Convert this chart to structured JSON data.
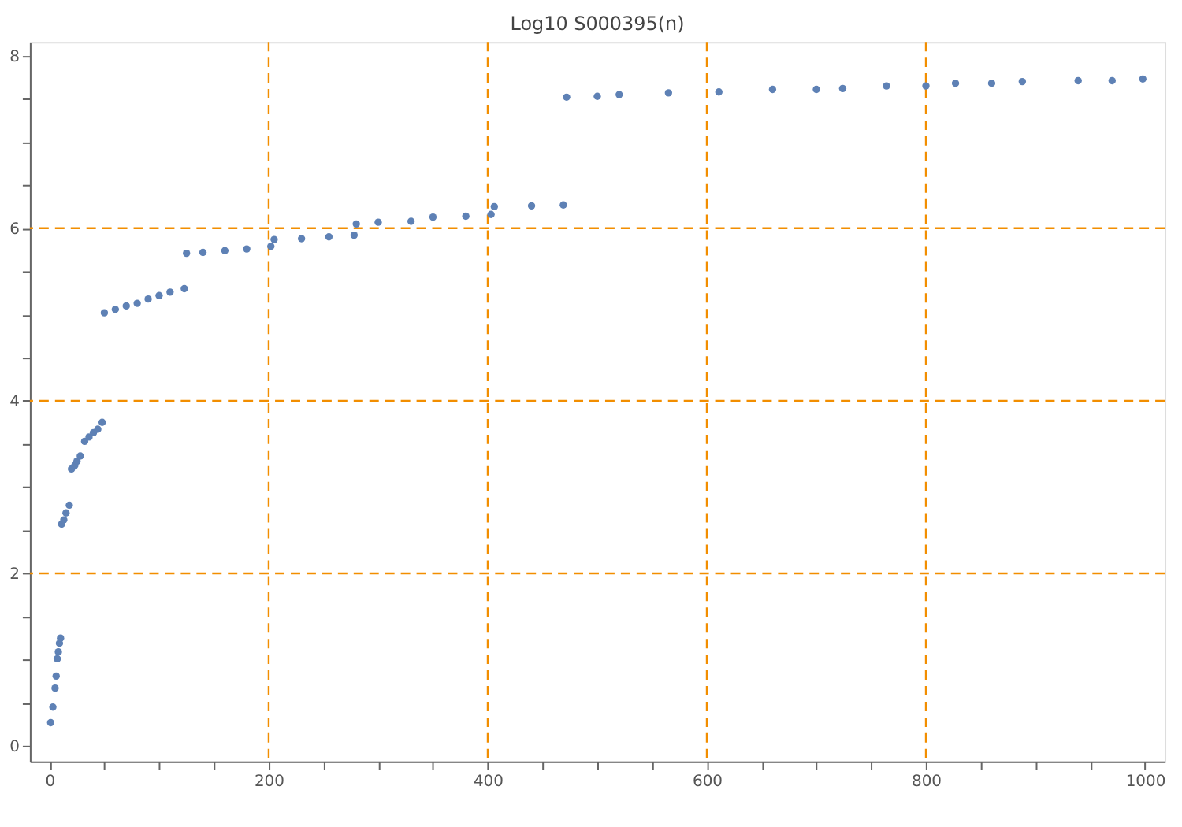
{
  "chart_data": {
    "type": "scatter",
    "title": "Log10 S000395(n)",
    "marker": "circle",
    "xlim": [
      -18,
      1018
    ],
    "ylim": [
      -0.18,
      8.16
    ],
    "xticks": [
      0,
      {
        "value": 50,
        "label": null
      },
      {
        "value": 100,
        "label": null
      },
      {
        "value": 150,
        "label": null
      },
      200,
      {
        "value": 250,
        "label": null
      },
      {
        "value": 300,
        "label": null
      },
      {
        "value": 350,
        "label": null
      },
      400,
      {
        "value": 450,
        "label": null
      },
      {
        "value": 500,
        "label": null
      },
      {
        "value": 550,
        "label": null
      },
      600,
      {
        "value": 650,
        "label": null
      },
      {
        "value": 700,
        "label": null
      },
      {
        "value": 750,
        "label": null
      },
      800,
      {
        "value": 850,
        "label": null
      },
      {
        "value": 900,
        "label": null
      },
      {
        "value": 950,
        "label": null
      },
      1000
    ],
    "yticks": [
      0,
      {
        "value": 0.5,
        "label": null
      },
      {
        "value": 1,
        "label": null
      },
      {
        "value": 1.5,
        "label": null
      },
      2,
      {
        "value": 2.5,
        "label": null
      },
      {
        "value": 3,
        "label": null
      },
      {
        "value": 3.5,
        "label": null
      },
      4,
      {
        "value": 4.5,
        "label": null
      },
      {
        "value": 5,
        "label": null
      },
      {
        "value": 5.5,
        "label": null
      },
      6,
      {
        "value": 6.5,
        "label": null
      },
      {
        "value": 7,
        "label": null
      },
      {
        "value": 7.5,
        "label": null
      },
      8
    ],
    "ref_lines": [
      {
        "axis": "x",
        "value": 200,
        "color": "#f28e00",
        "line_style": "dashed"
      },
      {
        "axis": "x",
        "value": 400,
        "color": "#f28e00",
        "line_style": "dashed"
      },
      {
        "axis": "x",
        "value": 600,
        "color": "#f28e00",
        "line_style": "dashed"
      },
      {
        "axis": "x",
        "value": 800,
        "color": "#f28e00",
        "line_style": "dashed"
      },
      {
        "axis": "y",
        "value": 2,
        "color": "#f28e00",
        "line_style": "dashed"
      },
      {
        "axis": "y",
        "value": 4,
        "color": "#f28e00",
        "line_style": "dashed"
      },
      {
        "axis": "y",
        "value": 6,
        "color": "#f28e00",
        "line_style": "dashed"
      }
    ],
    "series": [
      {
        "color": "#5e81b5",
        "x": [
          1,
          3,
          5,
          6,
          7,
          8,
          9,
          10,
          11,
          13,
          15,
          18,
          20,
          23,
          25,
          28,
          32,
          36,
          40,
          44,
          48,
          50,
          60,
          70,
          80,
          90,
          100,
          110,
          123,
          125,
          140,
          160,
          180,
          202,
          205,
          230,
          255,
          278,
          280,
          300,
          330,
          350,
          380,
          403,
          406,
          440,
          469,
          472,
          500,
          520,
          565,
          611,
          660,
          700,
          724,
          764,
          800,
          827,
          860,
          888,
          939,
          970,
          998
        ],
        "values": [
          0.27,
          0.45,
          0.67,
          0.81,
          1.01,
          1.09,
          1.19,
          1.25,
          2.57,
          2.62,
          2.7,
          2.79,
          3.21,
          3.25,
          3.3,
          3.36,
          3.53,
          3.58,
          3.63,
          3.67,
          3.75,
          5.02,
          5.06,
          5.1,
          5.13,
          5.18,
          5.22,
          5.26,
          5.3,
          5.71,
          5.72,
          5.74,
          5.76,
          5.79,
          5.87,
          5.88,
          5.9,
          5.92,
          6.05,
          6.07,
          6.08,
          6.13,
          6.14,
          6.16,
          6.25,
          6.26,
          6.27,
          7.52,
          7.53,
          7.55,
          7.57,
          7.58,
          7.61,
          7.61,
          7.62,
          7.65,
          7.65,
          7.68,
          7.68,
          7.7,
          7.71,
          7.71,
          7.73
        ]
      }
    ]
  }
}
